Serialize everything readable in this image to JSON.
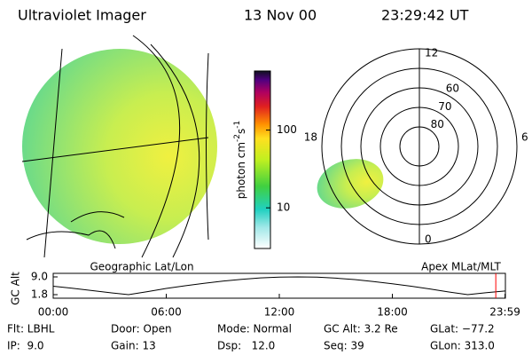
{
  "header": {
    "instrument": "Ultraviolet Imager",
    "date": "13 Nov 00",
    "time": "23:29:42 UT"
  },
  "colorbar": {
    "label": "photon cm",
    "exp1": "-2",
    "unit2": "s",
    "exp2": "-1",
    "lim": [
      3,
      575
    ],
    "ticks": [
      10,
      100
    ],
    "log": true
  },
  "left_panel": {
    "caption": "Geographic Lat/Lon"
  },
  "polar": {
    "caption": "Apex MLat/MLT",
    "mlt_ticks": [
      12,
      18,
      6,
      0
    ],
    "mlat_ticks": [
      80,
      70,
      60
    ],
    "mlat_lim": [
      90,
      40
    ]
  },
  "orbit": {
    "ylabel": "GC Alt",
    "yticks": [
      {
        "value": 9,
        "label": "9.0"
      },
      1.8
    ],
    "ylim": [
      1.8,
      9
    ],
    "xticks": [
      {
        "value": 0,
        "label": "00:00"
      },
      {
        "value": 6,
        "label": "06:00"
      },
      {
        "value": 12,
        "label": "12:00"
      },
      {
        "value": 18,
        "label": "18:00"
      },
      {
        "value": 23.98,
        "label": "23:59"
      }
    ],
    "xlim": [
      0,
      24
    ],
    "x": [
      0,
      1,
      2,
      3,
      4,
      5,
      6,
      7,
      8,
      9,
      10,
      11,
      12,
      13,
      14,
      15,
      16,
      17,
      18,
      19,
      20,
      21,
      22,
      23,
      23.98
    ],
    "values": [
      5.2,
      4.4,
      3.5,
      2.6,
      1.8,
      3.0,
      4.3,
      5.4,
      6.4,
      7.3,
      8.0,
      8.6,
      8.9,
      9.0,
      8.9,
      8.5,
      7.9,
      7.1,
      6.2,
      5.2,
      4.1,
      2.9,
      1.8,
      2.6,
      3.3
    ],
    "color": "#000000",
    "marker_x": 23.49,
    "marker_color": "#ff0000"
  },
  "footer": {
    "rows": [
      [
        "Flt: LBHL",
        "Door: Open",
        "Mode: Normal",
        "GC Alt: 3.2 Re",
        "GLat: −77.2"
      ],
      [
        "IP:  9.0",
        "Gain: 13",
        "Dsp:   12.0",
        "Seq: 39",
        "GLon: 313.0"
      ]
    ]
  }
}
